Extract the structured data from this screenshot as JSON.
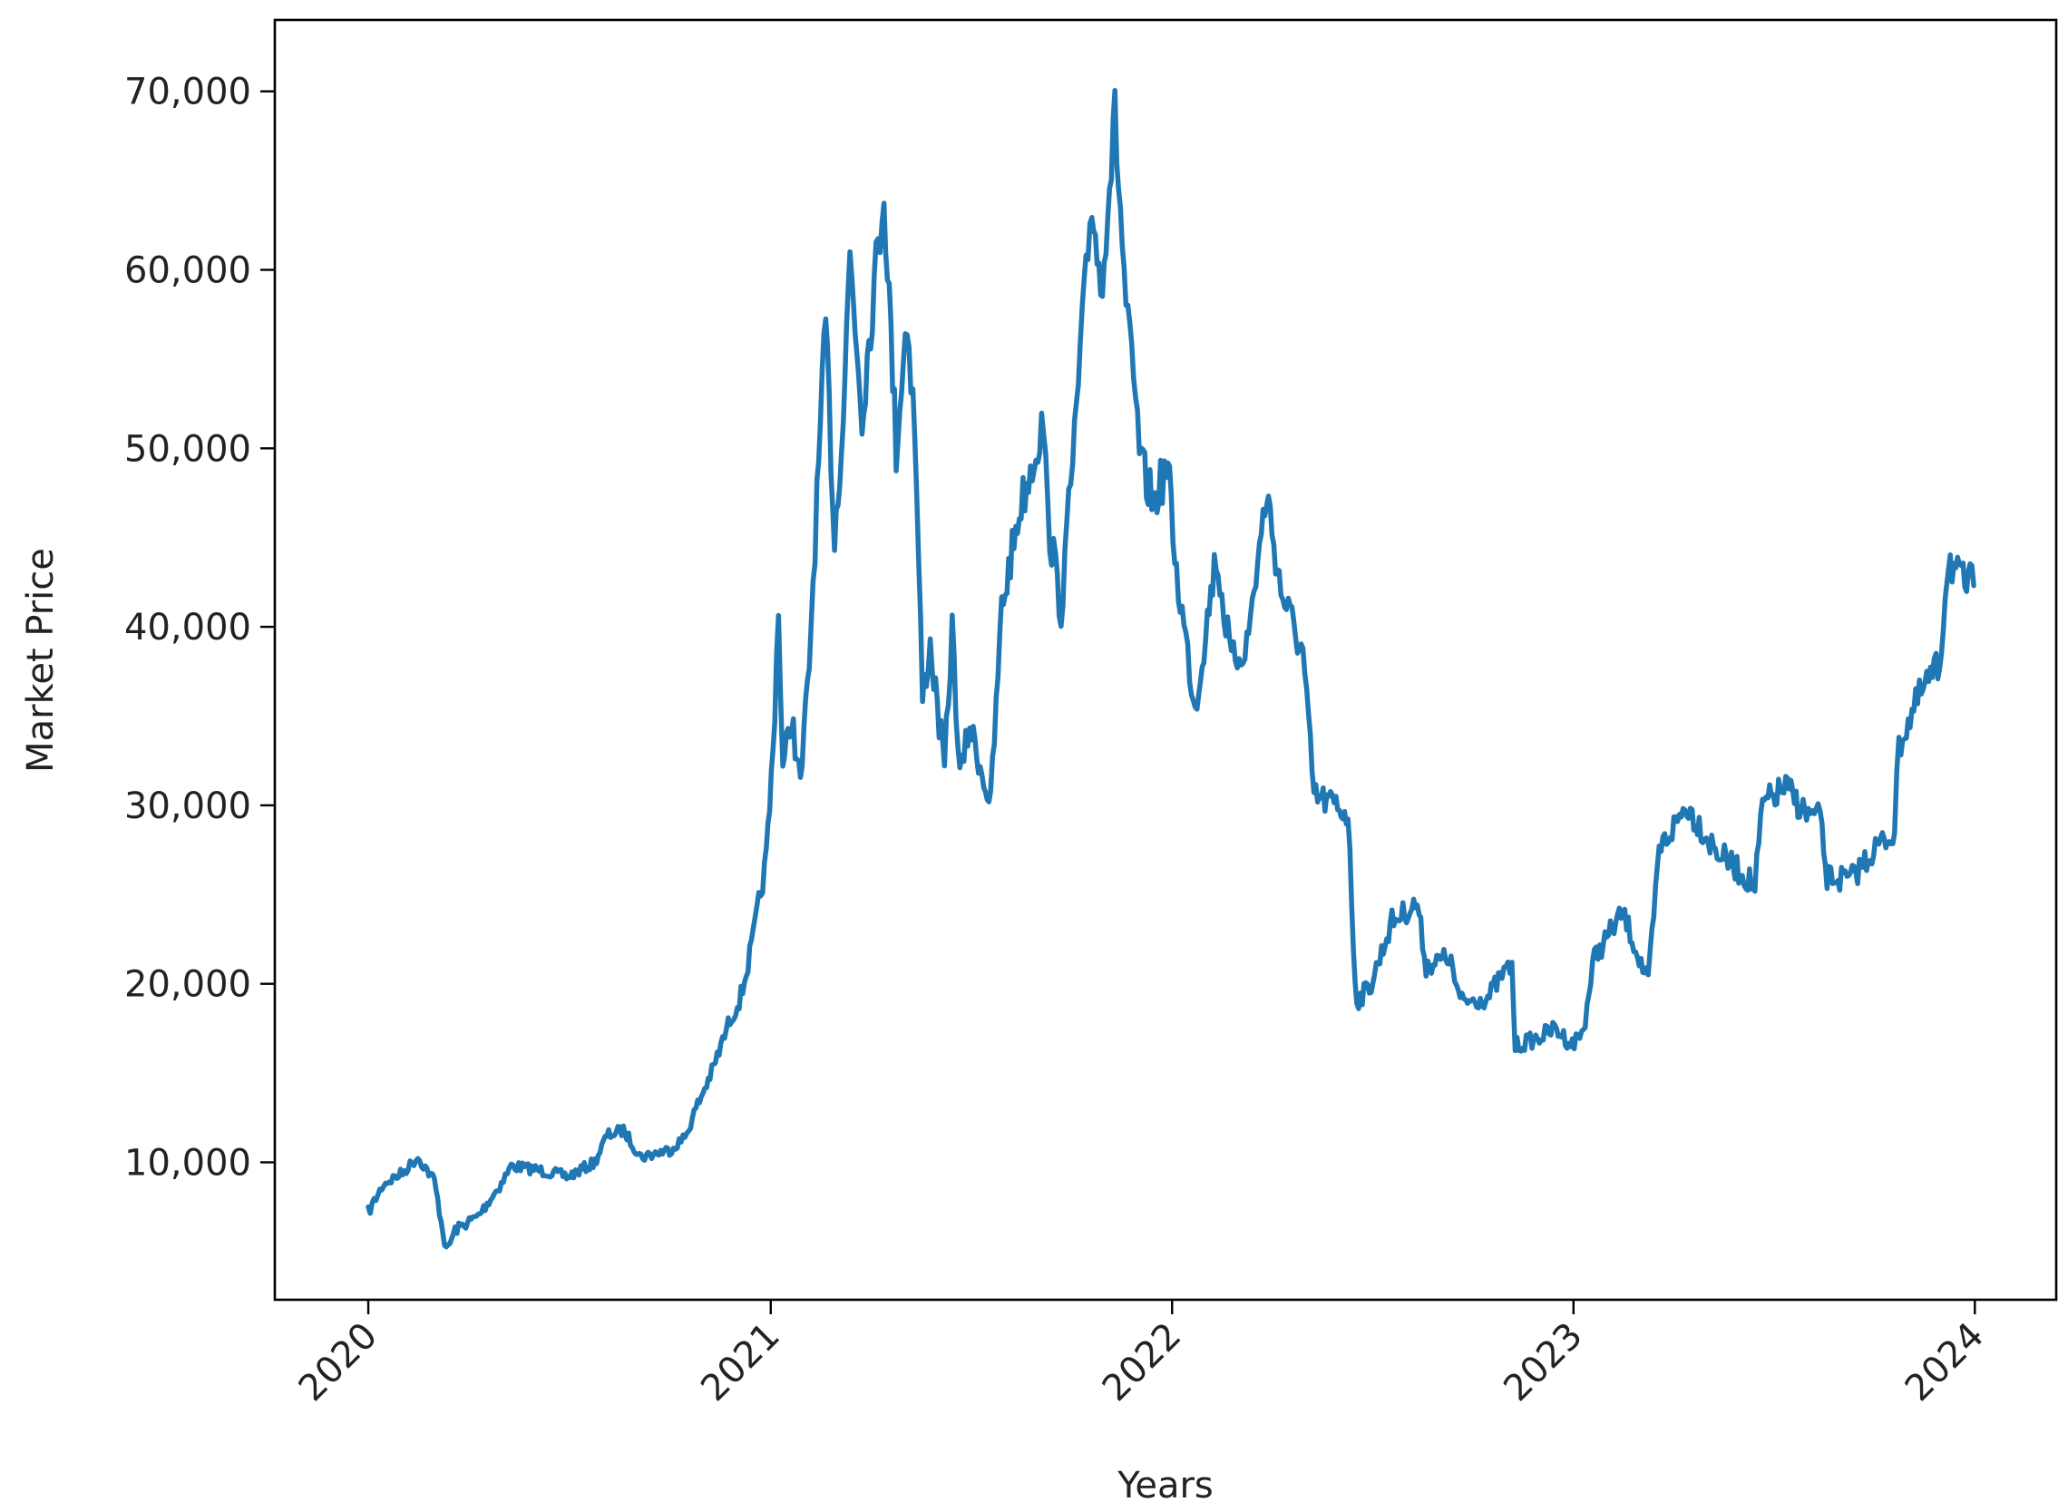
{
  "chart_data": {
    "type": "line",
    "title": "",
    "xlabel": "Years",
    "ylabel": "Market Price",
    "x_ticks": [
      "2020",
      "2021",
      "2022",
      "2023",
      "2024"
    ],
    "y_ticks": [
      "10,000",
      "20,000",
      "30,000",
      "40,000",
      "50,000",
      "60,000",
      "70,000"
    ],
    "xlim": [
      "2019-10-08",
      "2024-03-15"
    ],
    "ylim": [
      2300,
      74000
    ],
    "grid": false,
    "line_color": "#1f77b4",
    "series": [
      {
        "name": "",
        "points": [
          [
            "2020-01-01",
            7200
          ],
          [
            "2020-01-15",
            8800
          ],
          [
            "2020-02-01",
            9400
          ],
          [
            "2020-02-15",
            10300
          ],
          [
            "2020-03-01",
            9000
          ],
          [
            "2020-03-12",
            5000
          ],
          [
            "2020-03-20",
            6200
          ],
          [
            "2020-04-10",
            7000
          ],
          [
            "2020-05-01",
            8800
          ],
          [
            "2020-05-10",
            9800
          ],
          [
            "2020-06-01",
            9600
          ],
          [
            "2020-07-01",
            9200
          ],
          [
            "2020-07-25",
            10000
          ],
          [
            "2020-08-05",
            11500
          ],
          [
            "2020-08-20",
            11800
          ],
          [
            "2020-09-05",
            10300
          ],
          [
            "2020-10-01",
            10700
          ],
          [
            "2020-10-15",
            11400
          ],
          [
            "2020-10-25",
            13000
          ],
          [
            "2020-11-10",
            15300
          ],
          [
            "2020-11-25",
            18000
          ],
          [
            "2020-12-05",
            19300
          ],
          [
            "2020-12-16",
            22500
          ],
          [
            "2020-12-28",
            27000
          ],
          [
            "2021-01-03",
            33000
          ],
          [
            "2021-01-08",
            41000
          ],
          [
            "2021-01-12",
            32000
          ],
          [
            "2021-01-20",
            35000
          ],
          [
            "2021-01-28",
            31000
          ],
          [
            "2021-02-05",
            38000
          ],
          [
            "2021-02-12",
            47000
          ],
          [
            "2021-02-20",
            57000
          ],
          [
            "2021-02-28",
            45000
          ],
          [
            "2021-03-08",
            52000
          ],
          [
            "2021-03-14",
            61000
          ],
          [
            "2021-03-25",
            52000
          ],
          [
            "2021-04-05",
            59000
          ],
          [
            "2021-04-14",
            64500
          ],
          [
            "2021-04-25",
            50000
          ],
          [
            "2021-05-05",
            57500
          ],
          [
            "2021-05-12",
            51000
          ],
          [
            "2021-05-19",
            36000
          ],
          [
            "2021-05-26",
            39000
          ],
          [
            "2021-06-08",
            32000
          ],
          [
            "2021-06-15",
            40000
          ],
          [
            "2021-06-22",
            31500
          ],
          [
            "2021-07-01",
            34500
          ],
          [
            "2021-07-20",
            30000
          ],
          [
            "2021-07-30",
            41000
          ],
          [
            "2021-08-15",
            46500
          ],
          [
            "2021-09-06",
            51500
          ],
          [
            "2021-09-10",
            46000
          ],
          [
            "2021-09-22",
            41000
          ],
          [
            "2021-10-06",
            52000
          ],
          [
            "2021-10-20",
            64000
          ],
          [
            "2021-10-28",
            59000
          ],
          [
            "2021-11-10",
            68500
          ],
          [
            "2021-11-20",
            58000
          ],
          [
            "2021-12-04",
            49000
          ],
          [
            "2021-12-15",
            47000
          ],
          [
            "2021-12-28",
            49000
          ],
          [
            "2022-01-05",
            43000
          ],
          [
            "2022-01-22",
            35500
          ],
          [
            "2022-02-10",
            44000
          ],
          [
            "2022-02-24",
            38000
          ],
          [
            "2022-03-10",
            39000
          ],
          [
            "2022-03-28",
            47500
          ],
          [
            "2022-04-10",
            42000
          ],
          [
            "2022-04-30",
            38500
          ],
          [
            "2022-05-10",
            30500
          ],
          [
            "2022-05-30",
            30000
          ],
          [
            "2022-06-10",
            29500
          ],
          [
            "2022-06-15",
            22000
          ],
          [
            "2022-06-18",
            19000
          ],
          [
            "2022-07-01",
            20000
          ],
          [
            "2022-07-20",
            23500
          ],
          [
            "2022-08-12",
            24500
          ],
          [
            "2022-08-20",
            21000
          ],
          [
            "2022-09-10",
            21500
          ],
          [
            "2022-09-20",
            19000
          ],
          [
            "2022-10-15",
            19200
          ],
          [
            "2022-10-28",
            20500
          ],
          [
            "2022-11-06",
            21000
          ],
          [
            "2022-11-09",
            16500
          ],
          [
            "2022-12-01",
            17000
          ],
          [
            "2022-12-15",
            17500
          ],
          [
            "2022-12-31",
            16600
          ],
          [
            "2023-01-10",
            17400
          ],
          [
            "2023-01-20",
            21500
          ],
          [
            "2023-02-15",
            24000
          ],
          [
            "2023-03-10",
            20000
          ],
          [
            "2023-03-20",
            27500
          ],
          [
            "2023-04-14",
            30000
          ],
          [
            "2023-05-10",
            27500
          ],
          [
            "2023-06-15",
            25500
          ],
          [
            "2023-06-22",
            30000
          ],
          [
            "2023-07-13",
            31000
          ],
          [
            "2023-08-01",
            29500
          ],
          [
            "2023-08-15",
            29200
          ],
          [
            "2023-08-18",
            26000
          ],
          [
            "2023-09-10",
            25800
          ],
          [
            "2023-10-01",
            27500
          ],
          [
            "2023-10-20",
            28500
          ],
          [
            "2023-10-24",
            33500
          ],
          [
            "2023-11-15",
            36500
          ],
          [
            "2023-11-30",
            37800
          ],
          [
            "2023-12-05",
            42000
          ],
          [
            "2023-12-08",
            44000
          ],
          [
            "2023-12-18",
            42500
          ],
          [
            "2023-12-31",
            42300
          ]
        ]
      }
    ]
  }
}
